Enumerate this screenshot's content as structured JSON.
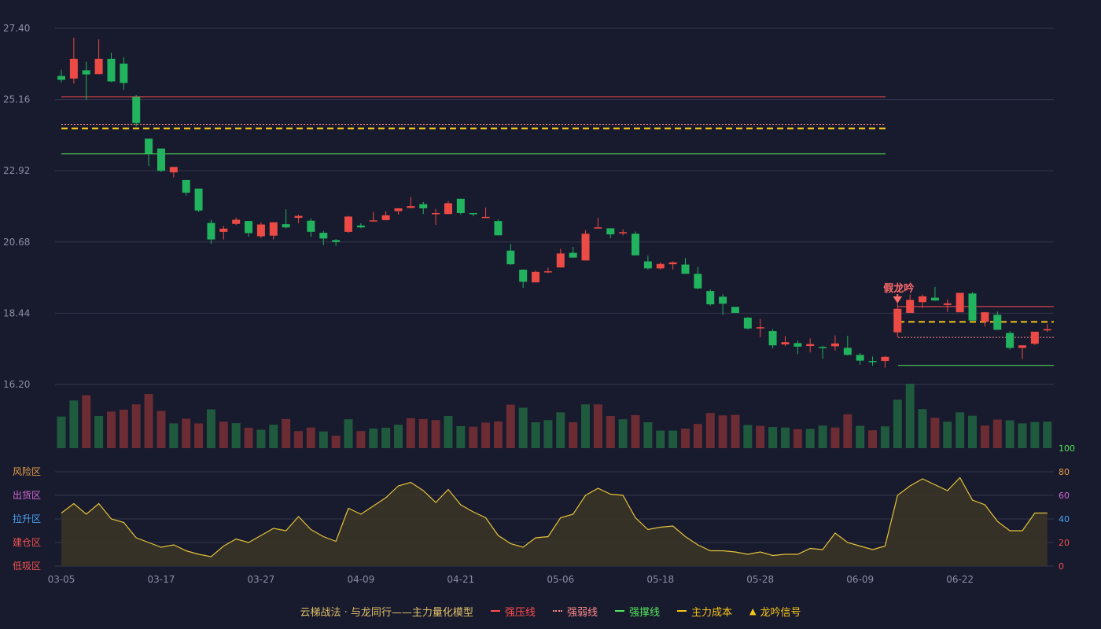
{
  "chart_data": {
    "type": "candlestick",
    "price_axis": {
      "ticks": [
        "27.40",
        "25.16",
        "22.92",
        "20.68",
        "18.44",
        "16.20"
      ],
      "min": 16.2,
      "max": 27.4
    },
    "indicator_axis": {
      "ticks": [
        "100",
        "80",
        "60",
        "40",
        "20",
        "0"
      ]
    },
    "dates": [
      "03-05",
      "03-17",
      "03-27",
      "04-09",
      "04-21",
      "05-06",
      "05-18",
      "05-28",
      "06-09",
      "06-22"
    ],
    "zones": [
      {
        "label": "风险区",
        "color": "#e8a04a"
      },
      {
        "label": "出货区",
        "color": "#d36ad6"
      },
      {
        "label": "拉升区",
        "color": "#4aa3f0"
      },
      {
        "label": "建仓区",
        "color": "#ef5350"
      },
      {
        "label": "低吸区",
        "color": "#ef5350"
      }
    ],
    "annotation": {
      "label": "假龙吟"
    },
    "levels": {
      "segment1": {
        "resistance": 25.25,
        "weak": 24.37,
        "cost": 24.25,
        "support": 23.45
      },
      "segment2": {
        "resistance": 18.65,
        "weak": 17.68,
        "cost": 18.17,
        "support": 16.8
      }
    },
    "candles": [
      [
        25.9,
        25.78,
        26.1,
        25.7
      ],
      [
        25.82,
        26.44,
        27.1,
        25.66
      ],
      [
        26.08,
        25.95,
        26.35,
        25.15
      ],
      [
        25.96,
        26.44,
        27.05,
        25.96
      ],
      [
        26.44,
        25.73,
        26.63,
        25.7
      ],
      [
        26.29,
        25.68,
        26.49,
        25.47
      ],
      [
        25.24,
        24.42,
        25.3,
        24.32
      ],
      [
        23.93,
        23.46,
        23.88,
        23.07
      ],
      [
        23.62,
        22.92,
        23.42,
        22.88
      ],
      [
        22.87,
        23.04,
        23.04,
        22.71
      ],
      [
        22.63,
        22.23,
        22.58,
        22.14
      ],
      [
        22.36,
        21.67,
        22.33,
        21.62
      ],
      [
        21.28,
        20.76,
        21.38,
        20.62
      ],
      [
        21.0,
        21.1,
        21.19,
        20.76
      ],
      [
        21.25,
        21.38,
        21.45,
        21.21
      ],
      [
        21.34,
        20.96,
        21.34,
        20.85
      ],
      [
        20.86,
        21.23,
        21.3,
        20.8
      ],
      [
        20.88,
        21.3,
        21.29,
        20.76
      ],
      [
        21.24,
        21.14,
        21.71,
        21.11
      ],
      [
        21.44,
        21.5,
        21.54,
        21.28
      ],
      [
        21.35,
        21.0,
        21.42,
        20.84
      ],
      [
        20.97,
        20.79,
        21.03,
        20.58
      ],
      [
        20.74,
        20.68,
        20.77,
        20.56
      ],
      [
        21.0,
        21.48,
        21.5,
        20.96
      ],
      [
        21.2,
        21.14,
        21.27,
        21.11
      ],
      [
        21.34,
        21.36,
        21.63,
        21.34
      ],
      [
        21.37,
        21.52,
        21.65,
        21.36
      ],
      [
        21.65,
        21.74,
        21.69,
        21.54
      ],
      [
        21.75,
        21.81,
        22.09,
        21.76
      ],
      [
        21.87,
        21.74,
        21.94,
        21.56
      ],
      [
        21.56,
        21.59,
        21.72,
        21.22
      ],
      [
        21.56,
        21.9,
        21.97,
        21.58
      ],
      [
        22.04,
        21.59,
        22.02,
        21.54
      ],
      [
        21.59,
        21.56,
        21.55,
        21.49
      ],
      [
        21.47,
        21.47,
        21.76,
        21.44
      ],
      [
        21.34,
        20.89,
        21.39,
        20.89
      ],
      [
        20.41,
        19.98,
        20.62,
        19.96
      ],
      [
        19.81,
        19.43,
        19.82,
        19.24
      ],
      [
        19.41,
        19.74,
        19.79,
        19.45
      ],
      [
        19.74,
        19.76,
        19.87,
        19.7
      ],
      [
        19.88,
        20.32,
        20.47,
        19.88
      ],
      [
        20.34,
        20.19,
        20.53,
        20.22
      ],
      [
        20.1,
        20.94,
        21.05,
        20.1
      ],
      [
        21.13,
        21.14,
        21.44,
        21.12
      ],
      [
        21.11,
        20.92,
        21.07,
        20.8
      ],
      [
        20.97,
        20.99,
        21.08,
        20.89
      ],
      [
        20.94,
        20.26,
        21.01,
        20.27
      ],
      [
        20.07,
        19.85,
        20.25,
        19.81
      ],
      [
        19.85,
        19.99,
        20.04,
        19.81
      ],
      [
        19.98,
        20.04,
        20.07,
        19.81
      ],
      [
        19.97,
        19.68,
        20.17,
        19.71
      ],
      [
        19.68,
        19.22,
        19.9,
        19.19
      ],
      [
        19.14,
        18.72,
        19.19,
        18.68
      ],
      [
        18.96,
        18.74,
        19.04,
        18.39
      ],
      [
        18.64,
        18.45,
        18.62,
        18.52
      ],
      [
        18.3,
        17.96,
        18.32,
        17.93
      ],
      [
        17.98,
        18.0,
        18.26,
        17.69
      ],
      [
        17.88,
        17.43,
        17.94,
        17.34
      ],
      [
        17.46,
        17.53,
        17.72,
        17.41
      ],
      [
        17.5,
        17.39,
        17.58,
        17.15
      ],
      [
        17.41,
        17.47,
        17.65,
        17.21
      ],
      [
        17.38,
        17.37,
        17.42,
        17.0
      ],
      [
        17.4,
        17.49,
        17.74,
        17.26
      ],
      [
        17.35,
        17.13,
        17.73,
        17.11
      ],
      [
        17.13,
        16.95,
        17.19,
        16.82
      ],
      [
        16.94,
        16.9,
        17.08,
        16.79
      ],
      [
        16.94,
        17.07,
        17.1,
        16.73
      ],
      [
        17.84,
        18.58,
        18.76,
        17.69
      ],
      [
        18.45,
        18.86,
        19.03,
        18.45
      ],
      [
        18.79,
        18.97,
        19.03,
        18.6
      ],
      [
        18.93,
        18.84,
        19.27,
        18.83
      ],
      [
        18.7,
        18.75,
        18.87,
        18.48
      ],
      [
        18.47,
        19.08,
        19.04,
        18.49
      ],
      [
        19.06,
        18.21,
        19.11,
        18.21
      ],
      [
        18.17,
        18.47,
        18.48,
        18.02
      ],
      [
        18.39,
        17.92,
        18.5,
        17.91
      ],
      [
        17.82,
        17.35,
        17.88,
        17.3
      ],
      [
        17.35,
        17.43,
        17.44,
        17.0
      ],
      [
        17.48,
        17.86,
        17.83,
        17.44
      ],
      [
        17.9,
        17.94,
        18.1,
        17.85
      ]
    ],
    "volumes": [
      1.15,
      1.73,
      1.92,
      1.17,
      1.33,
      1.4,
      1.59,
      1.97,
      1.35,
      0.9,
      1.07,
      0.9,
      1.41,
      0.96,
      0.91,
      0.74,
      0.67,
      0.85,
      1.06,
      0.62,
      0.75,
      0.61,
      0.45,
      1.05,
      0.62,
      0.71,
      0.74,
      0.85,
      1.09,
      1.06,
      1.02,
      1.17,
      0.8,
      0.78,
      0.93,
      0.97,
      1.58,
      1.47,
      0.94,
      1.02,
      1.3,
      0.94,
      1.59,
      1.59,
      1.17,
      1.05,
      1.2,
      0.94,
      0.64,
      0.64,
      0.71,
      0.88,
      1.28,
      1.19,
      1.21,
      0.84,
      0.81,
      0.77,
      0.75,
      0.69,
      0.7,
      0.82,
      0.75,
      1.23,
      0.81,
      0.65,
      0.79,
      1.76,
      2.34,
      1.42,
      1.1,
      0.96,
      1.3,
      1.18,
      0.82,
      1.04,
      1.01,
      0.9,
      0.95,
      0.96
    ],
    "volume_colors": [
      "g",
      "g",
      "r",
      "g",
      "r",
      "r",
      "r",
      "r",
      "r",
      "g",
      "r",
      "r",
      "g",
      "r",
      "g",
      "r",
      "g",
      "g",
      "r",
      "r",
      "r",
      "g",
      "r",
      "g",
      "r",
      "g",
      "g",
      "g",
      "r",
      "r",
      "r",
      "g",
      "g",
      "r",
      "r",
      "r",
      "r",
      "g",
      "g",
      "g",
      "g",
      "r",
      "g",
      "r",
      "r",
      "g",
      "r",
      "g",
      "g",
      "g",
      "r",
      "r",
      "r",
      "r",
      "r",
      "g",
      "r",
      "g",
      "g",
      "r",
      "g",
      "g",
      "r",
      "r",
      "g",
      "r",
      "g",
      "g",
      "g",
      "g",
      "r",
      "g",
      "g",
      "g",
      "r",
      "r",
      "g",
      "g",
      "g",
      "g"
    ],
    "indicator": [
      45,
      53,
      44,
      53,
      40,
      37,
      24,
      20,
      16,
      18,
      13,
      10,
      8,
      17,
      23,
      20,
      26,
      32,
      30,
      42,
      31,
      25,
      21,
      49,
      44,
      51,
      58,
      68,
      71,
      64,
      54,
      65,
      52,
      46,
      41,
      26,
      19,
      16,
      24,
      25,
      41,
      44,
      60,
      66,
      61,
      60,
      41,
      31,
      33,
      34,
      25,
      18,
      13,
      13,
      12,
      10,
      12,
      9,
      10,
      10,
      15,
      14,
      28,
      20,
      17,
      14,
      17,
      60,
      68,
      74,
      69,
      64,
      75,
      56,
      52,
      38,
      30,
      30,
      45,
      45
    ]
  },
  "legend": {
    "title": "云梯战法 · 与龙同行——主力量化模型",
    "items": [
      {
        "label": "强压线",
        "color": "#ff4d4f",
        "style": "solid"
      },
      {
        "label": "强弱线",
        "color": "#ff8a8a",
        "style": "dotted"
      },
      {
        "label": "强撑线",
        "color": "#52e85c",
        "style": "solid"
      },
      {
        "label": "主力成本",
        "color": "#f5c518",
        "style": "dashed"
      },
      {
        "label": "龙吟信号",
        "color": "#f5c518",
        "style": "triangle",
        "glyph": "▲"
      }
    ]
  },
  "colors": {
    "up": "#ec4b45",
    "down": "#22b35e",
    "vol_up": "#6b2c33",
    "vol_down": "#1f5a3e",
    "grid": "#34374c",
    "indicator_line": "#e5c33c",
    "indicator_fill": "#3a3426"
  }
}
